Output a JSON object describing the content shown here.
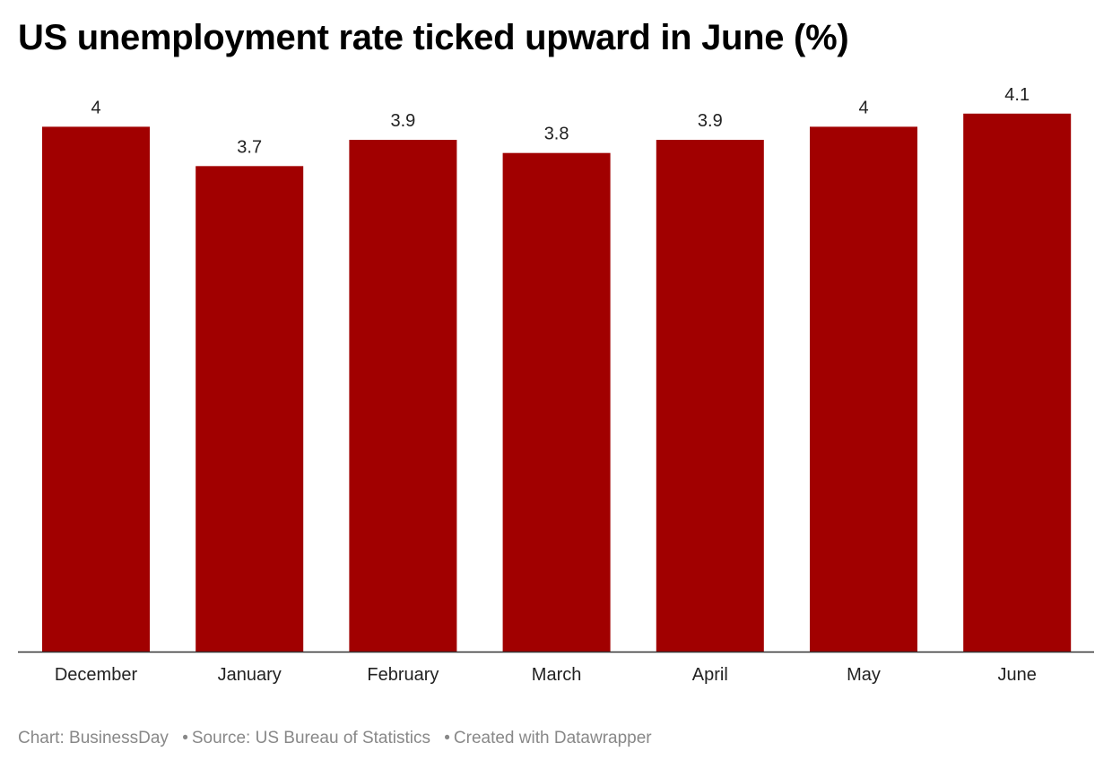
{
  "chart_data": {
    "type": "bar",
    "title": "US unemployment rate ticked upward in June (%)",
    "categories": [
      "December",
      "January",
      "February",
      "March",
      "April",
      "May",
      "June"
    ],
    "values": [
      4,
      3.7,
      3.9,
      3.8,
      3.9,
      4,
      4.1
    ],
    "value_labels": [
      "4",
      "3.7",
      "3.9",
      "3.8",
      "3.9",
      "4",
      "4.1"
    ],
    "xlabel": "",
    "ylabel": "",
    "ylim": [
      0,
      4.1
    ],
    "grid": false,
    "bar_color": "#a10000"
  },
  "footer": {
    "chart_credit": "Chart: BusinessDay",
    "source": "Source: US Bureau of Statistics",
    "created": "Created with Datawrapper",
    "separator": "•"
  }
}
